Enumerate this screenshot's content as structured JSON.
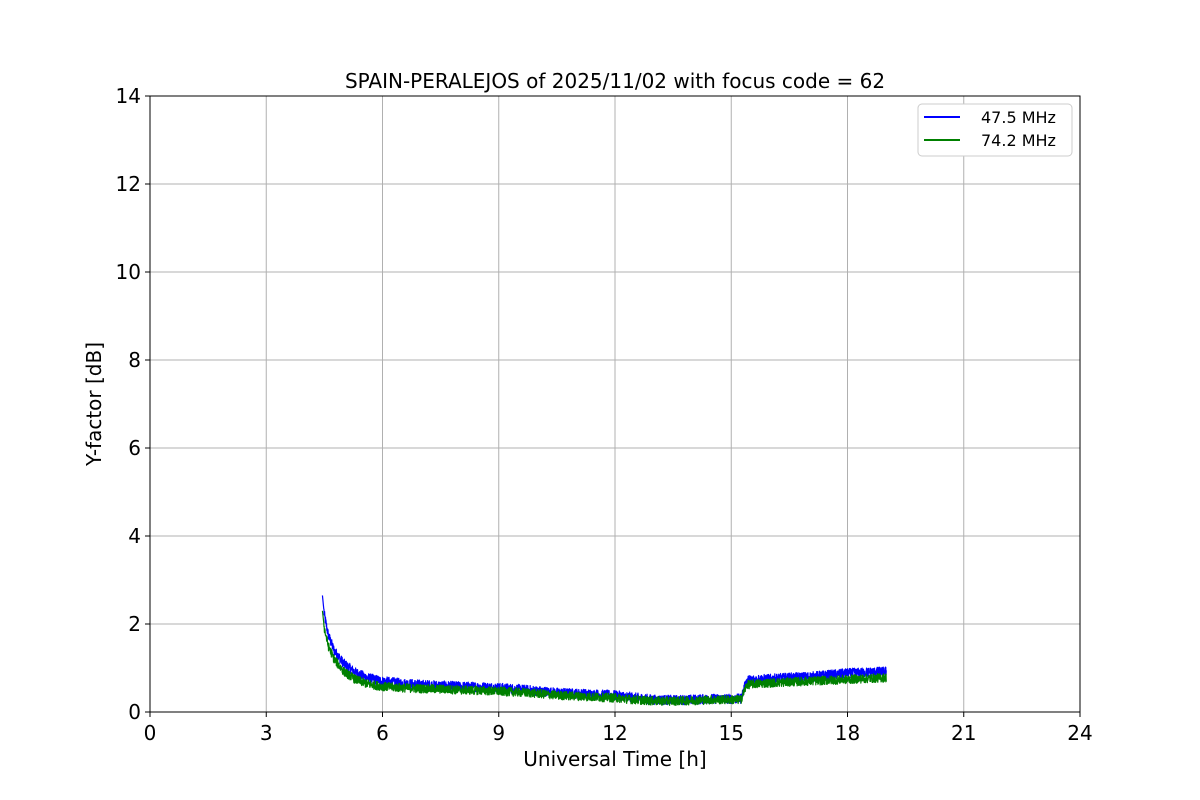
{
  "chart_data": {
    "type": "line",
    "title": "SPAIN-PERALEJOS of 2025/11/02 with focus code = 62",
    "xlabel": "Universal Time [h]",
    "ylabel": "Y-factor [dB]",
    "xlim": [
      0,
      24
    ],
    "ylim": [
      0,
      14
    ],
    "xticks": [
      0,
      3,
      6,
      9,
      12,
      15,
      18,
      21,
      24
    ],
    "yticks": [
      0,
      2,
      4,
      6,
      8,
      10,
      12,
      14
    ],
    "grid": true,
    "legend_position": "top-right",
    "colors": {
      "s0": "#0000ff",
      "s1": "#008000"
    },
    "series": [
      {
        "name": "47.5 MHz",
        "color": "#0000ff",
        "noise": 0.11,
        "x": [
          4.45,
          4.5,
          4.6,
          4.75,
          5.0,
          5.3,
          5.6,
          6.0,
          6.5,
          7.0,
          7.5,
          8.0,
          8.5,
          9.0,
          9.5,
          10.0,
          10.5,
          11.0,
          11.5,
          12.0,
          12.5,
          13.0,
          13.5,
          14.0,
          14.5,
          15.0,
          15.25,
          15.4,
          15.6,
          16.0,
          16.5,
          17.0,
          17.5,
          18.0,
          18.5,
          19.0
        ],
        "y": [
          2.65,
          2.2,
          1.75,
          1.4,
          1.1,
          0.9,
          0.78,
          0.7,
          0.65,
          0.62,
          0.6,
          0.58,
          0.57,
          0.55,
          0.52,
          0.48,
          0.44,
          0.42,
          0.4,
          0.38,
          0.33,
          0.28,
          0.27,
          0.28,
          0.3,
          0.3,
          0.3,
          0.72,
          0.74,
          0.75,
          0.78,
          0.8,
          0.84,
          0.88,
          0.9,
          0.92
        ]
      },
      {
        "name": "74.2 MHz",
        "color": "#008000",
        "noise": 0.1,
        "x": [
          4.45,
          4.5,
          4.6,
          4.75,
          5.0,
          5.3,
          5.6,
          6.0,
          6.5,
          7.0,
          7.5,
          8.0,
          8.5,
          9.0,
          9.5,
          10.0,
          10.5,
          11.0,
          11.5,
          12.0,
          12.5,
          13.0,
          13.5,
          14.0,
          14.5,
          15.0,
          15.25,
          15.4,
          15.6,
          16.0,
          16.5,
          17.0,
          17.5,
          18.0,
          18.5,
          19.0
        ],
        "y": [
          2.3,
          1.9,
          1.5,
          1.2,
          0.92,
          0.74,
          0.64,
          0.58,
          0.55,
          0.53,
          0.52,
          0.5,
          0.49,
          0.47,
          0.45,
          0.42,
          0.38,
          0.36,
          0.34,
          0.32,
          0.28,
          0.25,
          0.25,
          0.26,
          0.28,
          0.28,
          0.28,
          0.62,
          0.64,
          0.66,
          0.68,
          0.7,
          0.72,
          0.74,
          0.76,
          0.78
        ]
      }
    ]
  }
}
